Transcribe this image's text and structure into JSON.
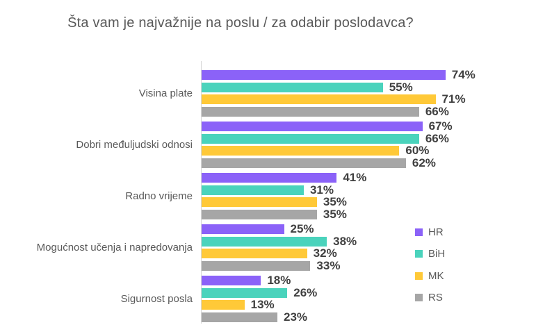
{
  "chart_data": {
    "type": "bar",
    "orientation": "horizontal",
    "title": "Šta vam je najvažnije na poslu / za odabir poslodavca?",
    "categories": [
      "Visina plate",
      "Dobri međuljudski odnosi",
      "Radno vrijeme",
      "Mogućnost učenja i napredovanja",
      "Sigurnost posla"
    ],
    "series": [
      {
        "name": "HR",
        "color": "#8b62f8",
        "values": [
          74,
          67,
          41,
          25,
          18
        ]
      },
      {
        "name": "BiH",
        "color": "#4ad3bc",
        "values": [
          55,
          66,
          31,
          38,
          26
        ]
      },
      {
        "name": "MK",
        "color": "#ffc938",
        "values": [
          71,
          60,
          35,
          32,
          13
        ]
      },
      {
        "name": "RS",
        "color": "#a6a6a6",
        "values": [
          66,
          62,
          35,
          33,
          23
        ]
      }
    ],
    "value_suffix": "%",
    "value_labels": true,
    "xlim": [
      0,
      80
    ],
    "grid": false,
    "legend_position": "right"
  },
  "colors": {
    "title_text": "#595959",
    "category_text": "#595959",
    "value_text": "#404040",
    "legend_text": "#595959",
    "axis_line": "#d6d6d6",
    "background": "#ffffff"
  }
}
